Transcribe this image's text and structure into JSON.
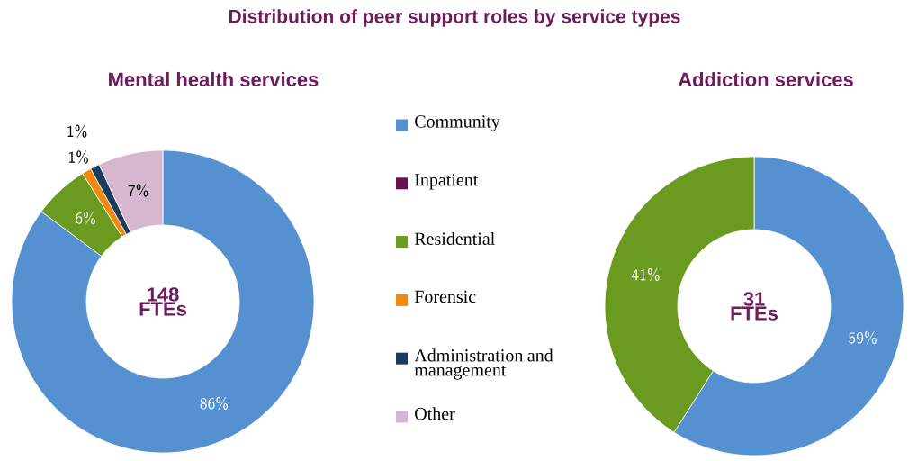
{
  "chart_data": [
    {
      "type": "donut",
      "title": "Distribution of peer support roles by service types",
      "subtitle": "Mental health services",
      "categories": [
        "Community",
        "Inpatient",
        "Residential",
        "Forensic",
        "Administration and management",
        "Other"
      ],
      "values": [
        86,
        0,
        6,
        1,
        1,
        7
      ],
      "value_labels": [
        "86%",
        null,
        "6%",
        "1%",
        "1%",
        "7%"
      ],
      "colors": [
        "#5591d0",
        "#6b0f4e",
        "#6a9a1f",
        "#ef8a0f",
        "#1f3a5f",
        "#d5b8cf"
      ],
      "annotations": [
        "148 FTEs"
      ],
      "legend": "right"
    },
    {
      "type": "donut",
      "title": "Addiction services",
      "categories": [
        null,
        null
      ],
      "values": [
        59,
        41
      ],
      "value_labels": [
        "59%",
        "41%"
      ],
      "colors": [
        "#5591d0",
        "#6a9a1f"
      ],
      "annotations": [
        "31 FTEs"
      ]
    }
  ]
}
